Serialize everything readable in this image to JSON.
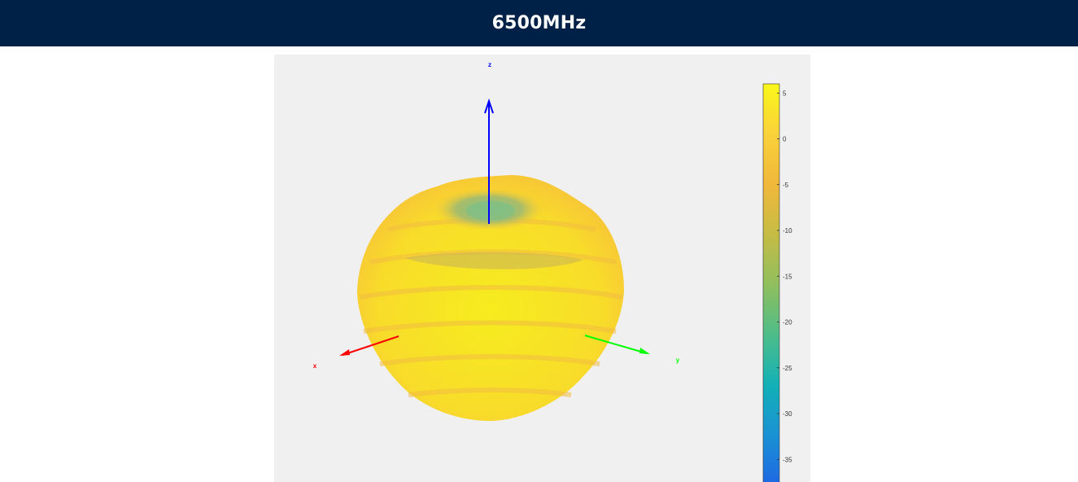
{
  "header": {
    "title": "6500MHz"
  },
  "chart_data": {
    "type": "3d-radiation-pattern",
    "title": "6500MHz",
    "axes": [
      {
        "name": "x",
        "color": "#ff0000"
      },
      {
        "name": "y",
        "color": "#00ff00"
      },
      {
        "name": "z",
        "color": "#0000ff"
      }
    ],
    "colorbar": {
      "ticks": [
        5,
        0,
        -5,
        -10,
        -15,
        -20,
        -25,
        -30,
        -35
      ],
      "range": [
        -38,
        6
      ],
      "colormap": [
        "#1f66e5",
        "#1a90d4",
        "#12b0b8",
        "#4cbd8a",
        "#8fbf5e",
        "#c5bc45",
        "#f0b83a",
        "#fad13a",
        "#f9f81a"
      ]
    },
    "pattern": {
      "peak_color": "#f3e52a",
      "null_color": "#7fbf86",
      "shape": "near-omnidirectional with null along +z"
    }
  }
}
